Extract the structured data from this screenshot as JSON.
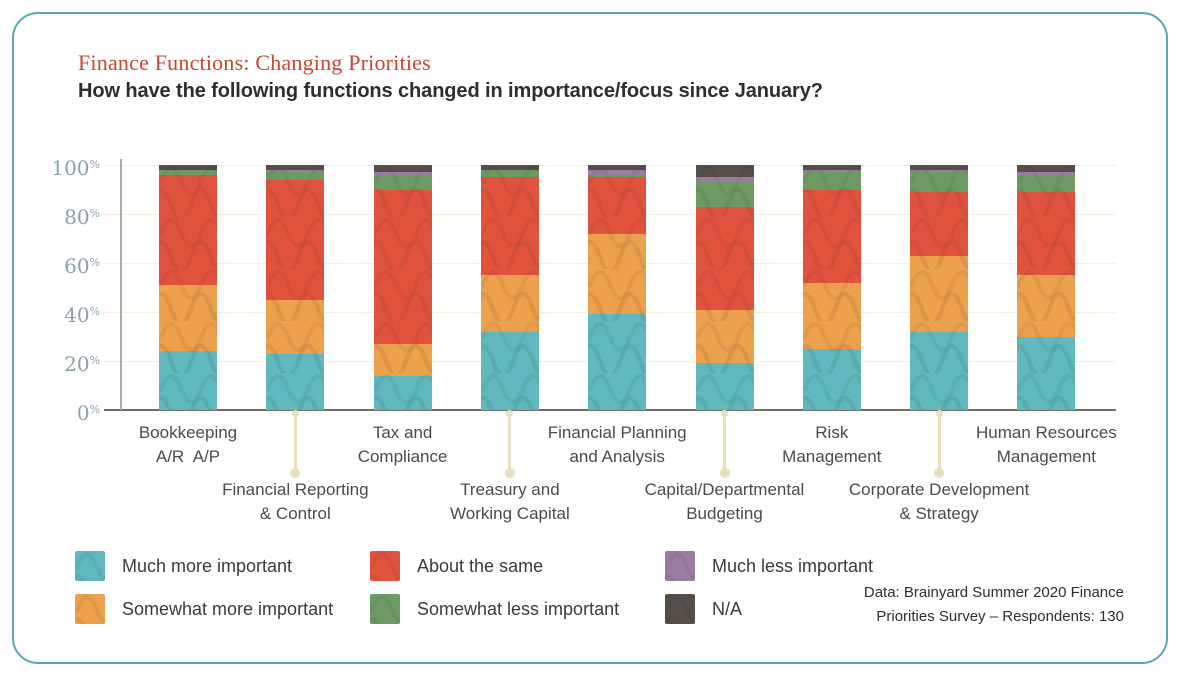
{
  "page": {
    "title": "Finance Functions: Changing Priorities",
    "subtitle": "How have the following functions changed in importance/focus since January?"
  },
  "chart_data": {
    "type": "bar",
    "stacked": true,
    "title": "Finance Functions: Changing Priorities",
    "subtitle": "How have the following functions changed in importance/focus since January?",
    "xlabel": "",
    "ylabel": "",
    "ylim": [
      0,
      100
    ],
    "y_ticks": [
      100,
      80,
      60,
      40,
      20,
      0
    ],
    "y_tick_suffix": "%",
    "grid": true,
    "legend_position": "bottom",
    "categories": [
      "Bookkeeping A/R A/P",
      "Financial Reporting & Control",
      "Tax and Compliance",
      "Treasury and Working Capital",
      "Financial Planning and Analysis",
      "Capital/Departmental Budgeting",
      "Risk Management",
      "Corporate Development & Strategy",
      "Human Resources Management"
    ],
    "category_label_lines": [
      [
        "Bookkeeping",
        "A/R  A/P"
      ],
      [
        "Financial Reporting",
        "& Control"
      ],
      [
        "Tax and",
        "Compliance"
      ],
      [
        "Treasury and",
        "Working Capital"
      ],
      [
        "Financial Planning",
        "and Analysis"
      ],
      [
        "Capital/Departmental",
        "Budgeting"
      ],
      [
        "Risk",
        "Management"
      ],
      [
        "Corporate Development",
        "& Strategy"
      ],
      [
        "Human Resources",
        "Management"
      ]
    ],
    "series": [
      {
        "name": "Much more important",
        "color": "#5FB9BE",
        "values": [
          24,
          23,
          14,
          32,
          39,
          19,
          25,
          32,
          30
        ]
      },
      {
        "name": "Somewhat more important",
        "color": "#EDA14D",
        "values": [
          27,
          22,
          13,
          23,
          33,
          22,
          27,
          31,
          25
        ]
      },
      {
        "name": "About the same",
        "color": "#E2533E",
        "values": [
          45,
          49,
          63,
          40,
          23,
          42,
          38,
          26,
          34
        ]
      },
      {
        "name": "Somewhat less important",
        "color": "#6E9B63",
        "values": [
          2,
          3,
          6,
          3,
          1,
          10,
          7,
          8,
          7
        ]
      },
      {
        "name": "Much less important",
        "color": "#9D7CA4",
        "values": [
          0,
          1,
          1,
          0,
          2,
          2,
          1,
          1,
          1
        ]
      },
      {
        "name": "N/A",
        "color": "#564F49",
        "values": [
          2,
          2,
          3,
          2,
          2,
          5,
          2,
          2,
          3
        ]
      }
    ]
  },
  "legend": {
    "items": [
      {
        "label": "Much more important",
        "color": "#5FB9BE"
      },
      {
        "label": "Somewhat more important",
        "color": "#EDA14D"
      },
      {
        "label": "About the same",
        "color": "#E2533E"
      },
      {
        "label": "Somewhat less important",
        "color": "#6E9B63"
      },
      {
        "label": "Much less important",
        "color": "#9D7CA4"
      },
      {
        "label": "N/A",
        "color": "#564F49"
      }
    ]
  },
  "source": {
    "line1": "Data: Brainyard Summer 2020 Finance",
    "line2": "Priorities Survey – Respondents: 130"
  },
  "colors": {
    "frame_border": "#58A7B1",
    "title_red": "#C74634",
    "subtitle_dark": "#312D2A",
    "axis_label_teal": "#87A3A8",
    "gridline_cream": "#F6EEDD",
    "baseline_gray": "#716E66",
    "connector_beige": "#E8DFBD",
    "x_label_gray": "#4B4B4B"
  }
}
